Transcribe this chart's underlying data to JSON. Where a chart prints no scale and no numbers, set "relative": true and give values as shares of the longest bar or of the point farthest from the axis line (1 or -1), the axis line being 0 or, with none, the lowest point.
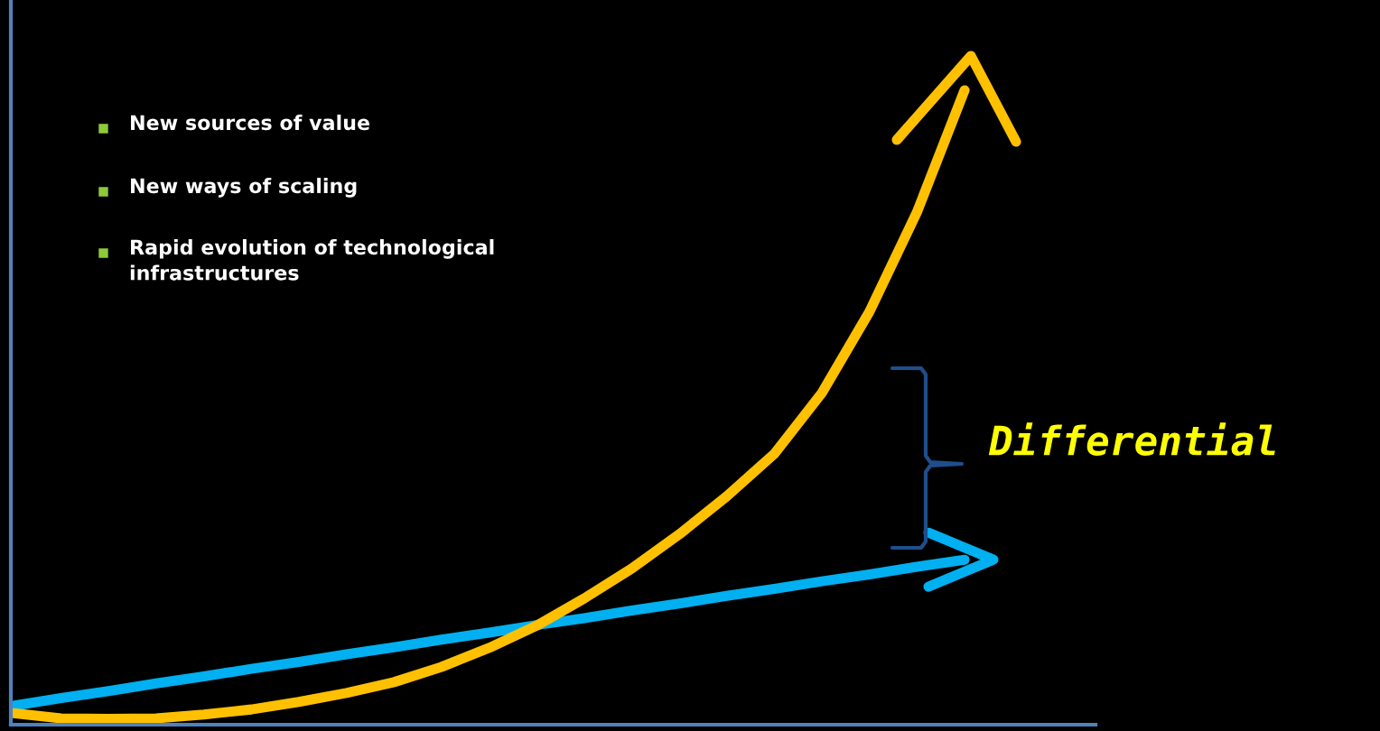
{
  "chart_data": {
    "type": "line",
    "relative": true,
    "legend": false,
    "marker": "none",
    "line_style": "solid",
    "categories": [
      null,
      null,
      null,
      null,
      null,
      null,
      null,
      null,
      null,
      null,
      null,
      null,
      null,
      null,
      null,
      null,
      null,
      null,
      null,
      null,
      null
    ],
    "series": [
      {
        "color": "#00b0f0",
        "values": [
          0.03,
          0.042,
          0.053,
          0.065,
          0.076,
          0.088,
          0.099,
          0.111,
          0.122,
          0.134,
          0.145,
          0.157,
          0.168,
          0.18,
          0.191,
          0.203,
          0.214,
          0.226,
          0.237,
          0.249,
          0.26
        ]
      },
      {
        "color": "#ffc000",
        "values": [
          0.018,
          0.01,
          0.009,
          0.01,
          0.016,
          0.024,
          0.036,
          0.05,
          0.067,
          0.091,
          0.121,
          0.156,
          0.199,
          0.246,
          0.3,
          0.36,
          0.427,
          0.523,
          0.651,
          0.808,
          1.0
        ]
      }
    ],
    "annotations": [
      "New sources of value",
      "New ways of scaling",
      "Rapid evolution of technological\ninfrastructures",
      "Differential"
    ]
  }
}
